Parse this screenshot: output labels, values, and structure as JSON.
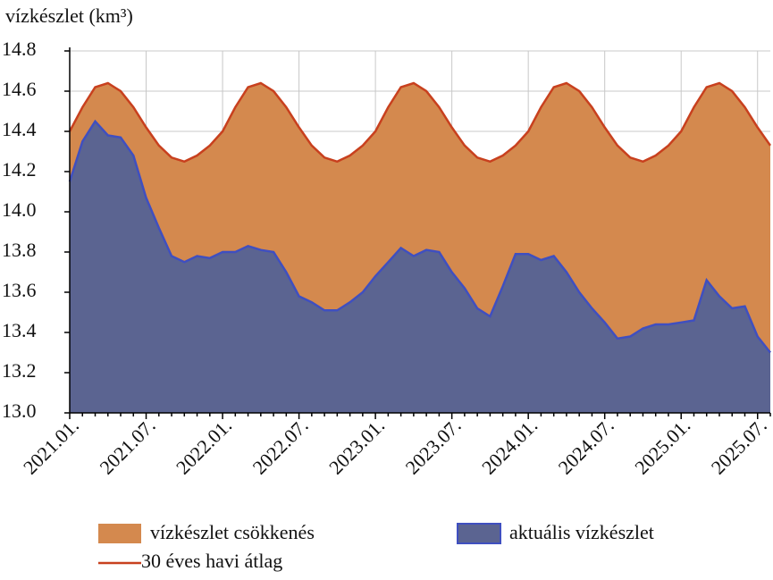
{
  "chart_data": {
    "type": "area",
    "y_axis_label": "vízkészlet (km³)",
    "categories": [
      "2021.01.",
      null,
      null,
      null,
      null,
      null,
      "2021.07.",
      null,
      null,
      null,
      null,
      null,
      "2022.01.",
      null,
      null,
      null,
      null,
      null,
      "2022.07.",
      null,
      null,
      null,
      null,
      null,
      "2023.01.",
      null,
      null,
      null,
      null,
      null,
      "2023.07.",
      null,
      null,
      null,
      null,
      null,
      "2024.01.",
      null,
      null,
      null,
      null,
      null,
      "2024.07.",
      null,
      null,
      null,
      null,
      null,
      "2025.01.",
      null,
      null,
      null,
      null,
      null,
      "2025.07.",
      null
    ],
    "series": [
      {
        "name": "30 éves havi átlag",
        "color": "#c8401e",
        "values": [
          14.4,
          14.52,
          14.62,
          14.64,
          14.6,
          14.52,
          14.42,
          14.33,
          14.27,
          14.25,
          14.28,
          14.33,
          14.4,
          14.52,
          14.62,
          14.64,
          14.6,
          14.52,
          14.42,
          14.33,
          14.27,
          14.25,
          14.28,
          14.33,
          14.4,
          14.52,
          14.62,
          14.64,
          14.6,
          14.52,
          14.42,
          14.33,
          14.27,
          14.25,
          14.28,
          14.33,
          14.4,
          14.52,
          14.62,
          14.64,
          14.6,
          14.52,
          14.42,
          14.33,
          14.27,
          14.25,
          14.28,
          14.33,
          14.4,
          14.52,
          14.62,
          14.64,
          14.6,
          14.52,
          14.42,
          14.33
        ]
      },
      {
        "name": "aktuális vízkészlet",
        "color": "#3f4fc0",
        "fill": "#5b6491",
        "values": [
          14.15,
          14.35,
          14.45,
          14.38,
          14.37,
          14.28,
          14.07,
          13.92,
          13.78,
          13.75,
          13.78,
          13.77,
          13.8,
          13.8,
          13.83,
          13.81,
          13.8,
          13.7,
          13.58,
          13.55,
          13.51,
          13.51,
          13.55,
          13.6,
          13.68,
          13.75,
          13.82,
          13.78,
          13.81,
          13.8,
          13.7,
          13.62,
          13.52,
          13.48,
          13.63,
          13.79,
          13.79,
          13.76,
          13.78,
          13.7,
          13.6,
          13.52,
          13.45,
          13.37,
          13.38,
          13.42,
          13.44,
          13.44,
          13.45,
          13.46,
          13.66,
          13.58,
          13.52,
          13.53,
          13.38,
          13.3
        ]
      }
    ],
    "fill_between": {
      "name": "vízkészlet csökkenés",
      "color": "#d4894e"
    },
    "ylim": [
      13.0,
      14.8
    ],
    "yticks": [
      {
        "value": 13,
        "label": "13.0"
      },
      13.2,
      13.4,
      13.6,
      13.8,
      {
        "value": 14,
        "label": "14.0"
      },
      14.2,
      14.4,
      14.6,
      14.8
    ],
    "grid": true
  }
}
